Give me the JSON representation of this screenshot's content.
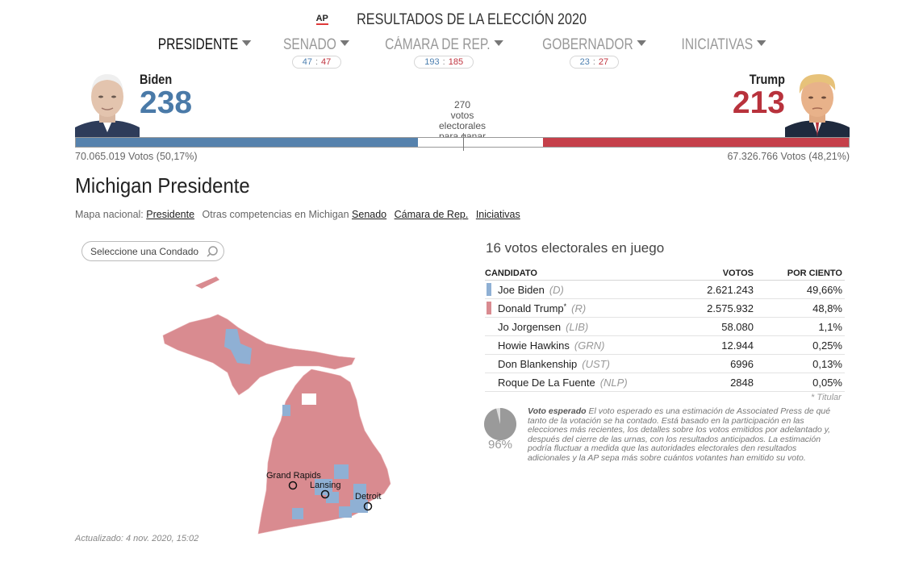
{
  "header": {
    "logo": "AP",
    "title": "RESULTADOS DE LA ELECCIÓN 2020"
  },
  "nav": [
    {
      "label": "PRESIDENTE",
      "active": true
    },
    {
      "label": "SENADO",
      "dem": "47",
      "rep": "47"
    },
    {
      "label": "CÁMARA DE REP.",
      "dem": "193",
      "rep": "185"
    },
    {
      "label": "GOBERNADOR",
      "dem": "23",
      "rep": "27"
    },
    {
      "label": "INICIATIVAS"
    }
  ],
  "national": {
    "dem": {
      "name": "Biden",
      "ev": "238",
      "popular": "70.065.019 Votos (50,17%)"
    },
    "rep": {
      "name": "Trump",
      "ev": "213",
      "popular": "67.326.766 Votos (48,21%)"
    },
    "threshold": [
      "270",
      "votos",
      "electorales",
      "para ganar"
    ],
    "dem_ev_value": 238,
    "rep_ev_value": 213,
    "total_ev": 538
  },
  "state": {
    "title": "Michigan Presidente",
    "links_prefix": "Mapa nacional:",
    "national_link": "Presidente",
    "other_prefix": "Otras competencias en Michigan",
    "other_links": [
      "Senado",
      "Cámara de Rep.",
      "Iniciativas"
    ],
    "county_search_placeholder": "Seleccione una Condado",
    "ev_header": "16 votos electorales en juego",
    "cities": [
      "Grand Rapids",
      "Lansing",
      "Detroit"
    ],
    "updated": "Actualizado: 4 nov. 2020, 15:02"
  },
  "results": {
    "columns": {
      "candidate": "CANDIDATO",
      "votes": "VOTOS",
      "percent": "POR CIENTO"
    },
    "rows": [
      {
        "name": "Joe Biden",
        "party": "(D)",
        "votes": "2.621.243",
        "percent": "49,66%",
        "color": "#8fb0d4",
        "incumbent": ""
      },
      {
        "name": "Donald Trump",
        "party": "(R)",
        "votes": "2.575.932",
        "percent": "48,8%",
        "color": "#d98b90",
        "incumbent": "*"
      },
      {
        "name": "Jo Jorgensen",
        "party": "(LIB)",
        "votes": "58.080",
        "percent": "1,1%",
        "color": "",
        "incumbent": ""
      },
      {
        "name": "Howie Hawkins",
        "party": "(GRN)",
        "votes": "12.944",
        "percent": "0,25%",
        "color": "",
        "incumbent": ""
      },
      {
        "name": "Don Blankenship",
        "party": "(UST)",
        "votes": "6996",
        "percent": "0,13%",
        "color": "",
        "incumbent": ""
      },
      {
        "name": "Roque De La Fuente",
        "party": "(NLP)",
        "votes": "2848",
        "percent": "0,05%",
        "color": "",
        "incumbent": ""
      }
    ],
    "footnote": "* Titular"
  },
  "expected_vote": {
    "percent": "96%",
    "value": 0.96,
    "label": "Voto esperado",
    "text": "El voto esperado es una estimación de Associated Press de qué tanto de la votación se ha contado. Está basado en la participación en las elecciones más recientes, los detalles sobre los votos emitidos por adelantado y, después del cierre de las urnas, con los resultados anticipados. La estimación podría fluctuar a medida que las autoridades electorales den resultados adicionales y la AP sepa más sobre cuántos votantes han emitido su voto."
  },
  "colors": {
    "dem": "#5682ad",
    "rep": "#c5404a",
    "dem_map": "#8fb0d4",
    "rep_map": "#d98b90"
  }
}
